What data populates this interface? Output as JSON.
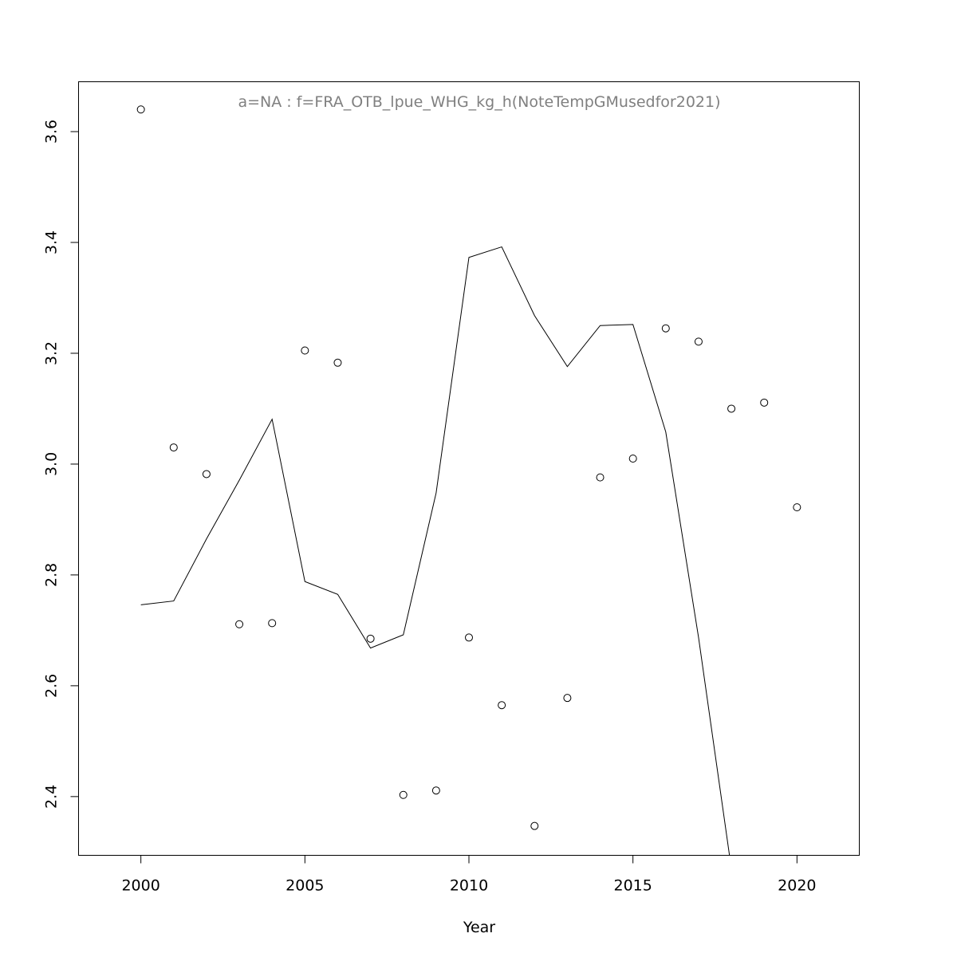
{
  "chart_data": {
    "type": "scatter",
    "title": "a=NA  :  f=FRA_OTB_lpue_WHG_kg_h(NoteTempGMusedfor2021)",
    "xlabel": "Year",
    "ylabel": "",
    "xlim": [
      1998.1,
      2021.9
    ],
    "ylim": [
      2.294,
      3.69
    ],
    "xticks": [
      2000,
      2005,
      2010,
      2015,
      2020
    ],
    "yticks": [
      2.4,
      2.6,
      2.8,
      3.0,
      3.2,
      3.4,
      3.6
    ],
    "ytick_labels": [
      "2.4",
      "2.6",
      "2.8",
      "3.0",
      "3.2",
      "3.4",
      "3.6"
    ],
    "grid": false,
    "points": {
      "x": [
        2000,
        2001,
        2002,
        2003,
        2004,
        2005,
        2006,
        2007,
        2008,
        2009,
        2010,
        2011,
        2012,
        2013,
        2014,
        2015,
        2016,
        2017,
        2018,
        2019,
        2020
      ],
      "y": [
        3.64,
        3.03,
        2.982,
        2.711,
        2.713,
        3.205,
        3.183,
        2.685,
        2.403,
        2.411,
        2.687,
        2.565,
        2.347,
        2.578,
        2.976,
        3.01,
        3.245,
        3.221,
        3.1,
        3.111,
        2.922
      ]
    },
    "line": {
      "x": [
        2000,
        2001,
        2002,
        2003,
        2004,
        2005,
        2006,
        2007,
        2008,
        2009,
        2010,
        2011,
        2012,
        2013,
        2014,
        2015,
        2016,
        2017,
        2018
      ],
      "y": [
        2.746,
        2.753,
        2.865,
        2.971,
        3.081,
        2.788,
        2.765,
        2.668,
        2.692,
        2.948,
        3.373,
        3.392,
        3.268,
        3.176,
        3.25,
        3.252,
        3.058,
        2.687,
        2.27
      ]
    }
  }
}
